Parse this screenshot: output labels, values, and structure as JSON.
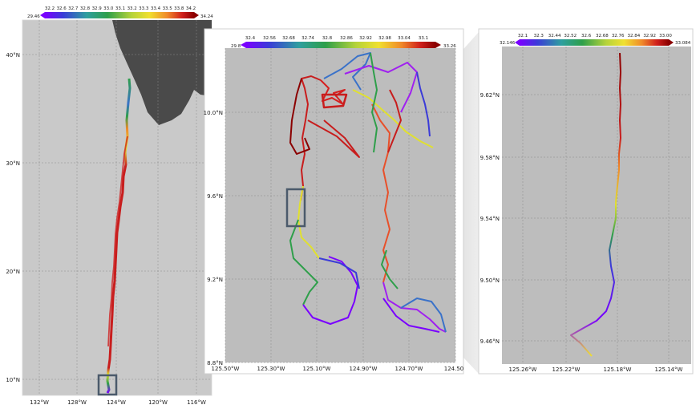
{
  "colors": {
    "colormap": [
      "#7a00ff",
      "#a020f0",
      "#3b3bd8",
      "#3a72c9",
      "#2e9f6a",
      "#49b84a",
      "#9bd13b",
      "#e0e030",
      "#f5a02a",
      "#e8502a",
      "#c81d1d",
      "#8b0000"
    ],
    "land": "#4a4a4a",
    "ocean": "#c9c9c9",
    "panel_bg": "#b8b8b8",
    "box": "#4b5a6b"
  },
  "panels": [
    {
      "name": "overview",
      "colorbar": {
        "min_label": "29.46",
        "max_label": "34.24",
        "ticks": [
          "32.2",
          "32.6",
          "32.7",
          "32.8",
          "32.9",
          "33.0",
          "33.1",
          "33.2",
          "33.3",
          "33.4",
          "33.5",
          "33.8",
          "34.2"
        ]
      },
      "y_labels": [
        "40°N",
        "30°N",
        "20°N",
        "10°N"
      ],
      "x_labels": [
        "132°W",
        "128°W",
        "124°W",
        "120°W",
        "116°W"
      ]
    },
    {
      "name": "zoom-1",
      "colorbar": {
        "min_label": "29.8",
        "max_label": "33.26",
        "ticks": [
          "32.4",
          "32.56",
          "32.68",
          "32.74",
          "32.8",
          "32.86",
          "32.92",
          "32.98",
          "33.04",
          "33.1"
        ]
      },
      "y_labels": [
        "10.0°N",
        "9.6°N",
        "9.2°N",
        "8.8°N"
      ],
      "x_labels": [
        "125.50°W",
        "125.30°W",
        "125.10°W",
        "124.90°W",
        "124.70°W",
        "124.50"
      ]
    },
    {
      "name": "zoom-2",
      "colorbar": {
        "min_label": "32.146",
        "max_label": "33.084",
        "ticks": [
          "32.1",
          "32.3",
          "32.44",
          "32.52",
          "32.6",
          "32.68",
          "32.76",
          "32.84",
          "32.92",
          "33.00"
        ]
      },
      "y_labels": [
        "9.62°N",
        "9.58°N",
        "9.54°N",
        "9.50°N",
        "9.46°N"
      ],
      "x_labels": [
        "125.26°W",
        "125.22°W",
        "125.18°W",
        "125.14°W"
      ]
    }
  ]
}
